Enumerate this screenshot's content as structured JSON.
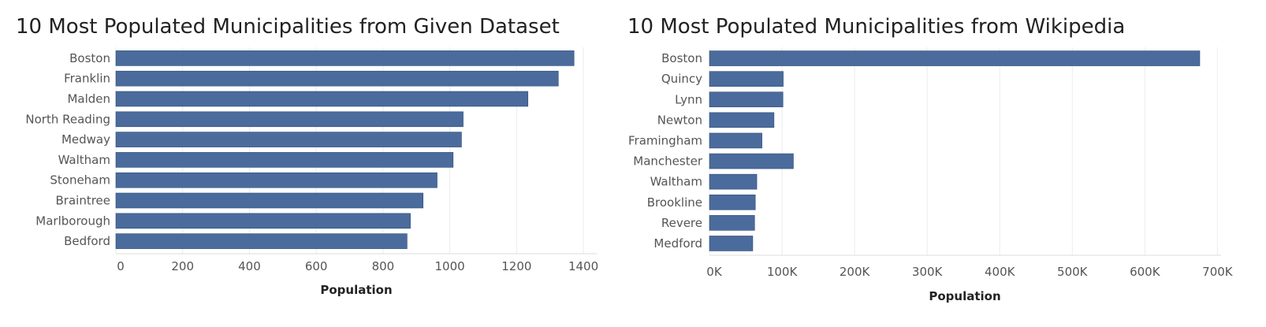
{
  "chart_data": [
    {
      "type": "bar",
      "orientation": "horizontal",
      "title": "10 Most Populated Municipalities from Given Dataset",
      "xlabel": "Population",
      "categories": [
        "Boston",
        "Franklin",
        "Malden",
        "North Reading",
        "Medway",
        "Waltham",
        "Stoneham",
        "Braintree",
        "Marlborough",
        "Bedford"
      ],
      "values": [
        1372,
        1325,
        1234,
        1040,
        1035,
        1010,
        962,
        920,
        882,
        872
      ],
      "ticks": [
        0,
        200,
        400,
        600,
        800,
        1000,
        1200,
        1400
      ],
      "tick_labels": [
        "0",
        "200",
        "400",
        "600",
        "800",
        "1000",
        "1200",
        "1400"
      ],
      "xlim": [
        0,
        1440
      ],
      "grid": true,
      "bar_color": "#4a6b9c"
    },
    {
      "type": "bar",
      "orientation": "horizontal",
      "title": "10 Most Populated Municipalities from Wikipedia",
      "xlabel": "Population",
      "categories": [
        "Boston",
        "Quincy",
        "Lynn",
        "Newton",
        "Framingham",
        "Manchester",
        "Waltham",
        "Brookline",
        "Revere",
        "Medford"
      ],
      "values": [
        675647,
        101636,
        101253,
        88923,
        72362,
        115644,
        65218,
        63191,
        62186,
        59659
      ],
      "ticks": [
        0,
        100000,
        200000,
        300000,
        400000,
        500000,
        600000,
        700000
      ],
      "tick_labels": [
        "0K",
        "100K",
        "200K",
        "300K",
        "400K",
        "500K",
        "600K",
        "700K"
      ],
      "xlim": [
        0,
        705000
      ],
      "grid": true,
      "bar_color": "#4a6b9c"
    }
  ]
}
